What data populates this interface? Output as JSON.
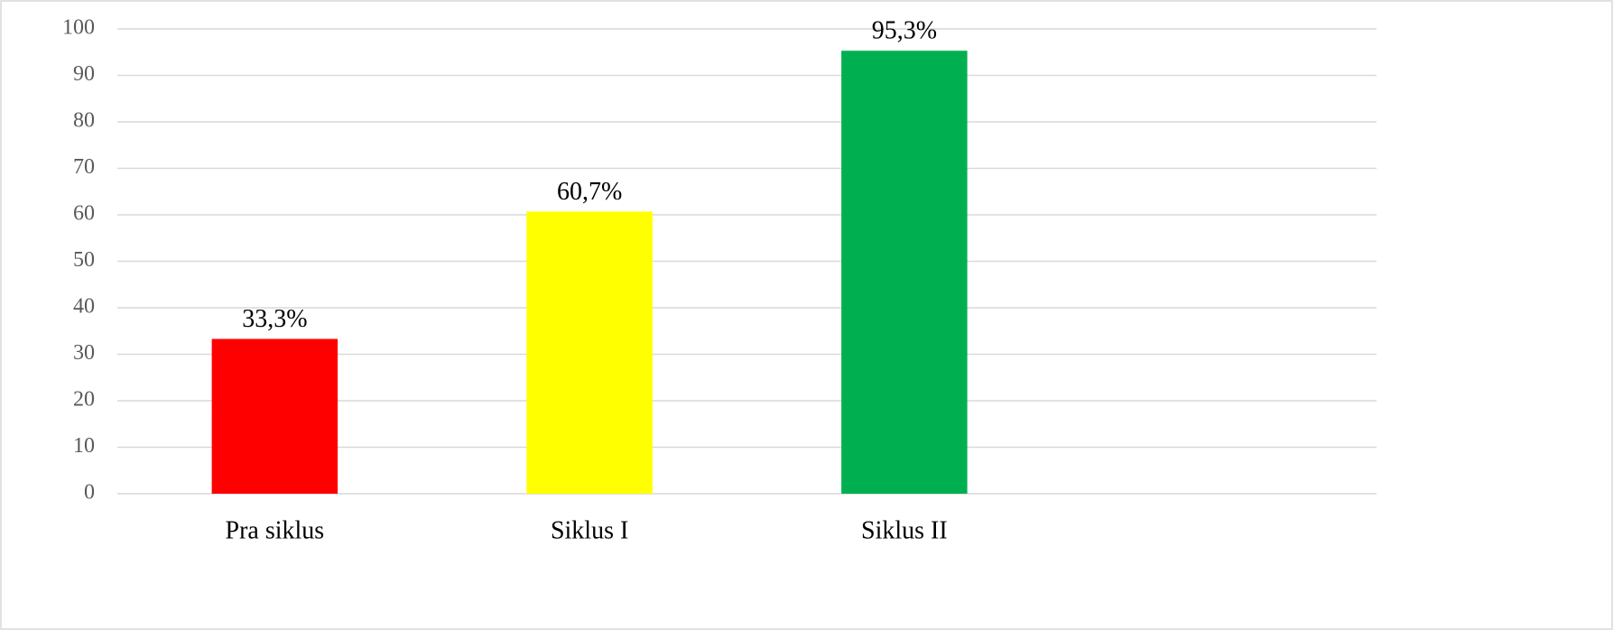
{
  "chart_data": {
    "type": "bar",
    "categories": [
      "Pra siklus",
      "Siklus I",
      "Siklus II",
      null
    ],
    "values": [
      33.3,
      60.7,
      95.3,
      null
    ],
    "value_labels": [
      "33,3%",
      "60,7%",
      "95,3%",
      null
    ],
    "colors": [
      "#ff0000",
      "#ffff00",
      "#00b050"
    ],
    "ylim": [
      0,
      100
    ],
    "yticks": [
      0,
      10,
      20,
      30,
      40,
      50,
      60,
      70,
      80,
      90,
      100
    ],
    "grid": true
  }
}
